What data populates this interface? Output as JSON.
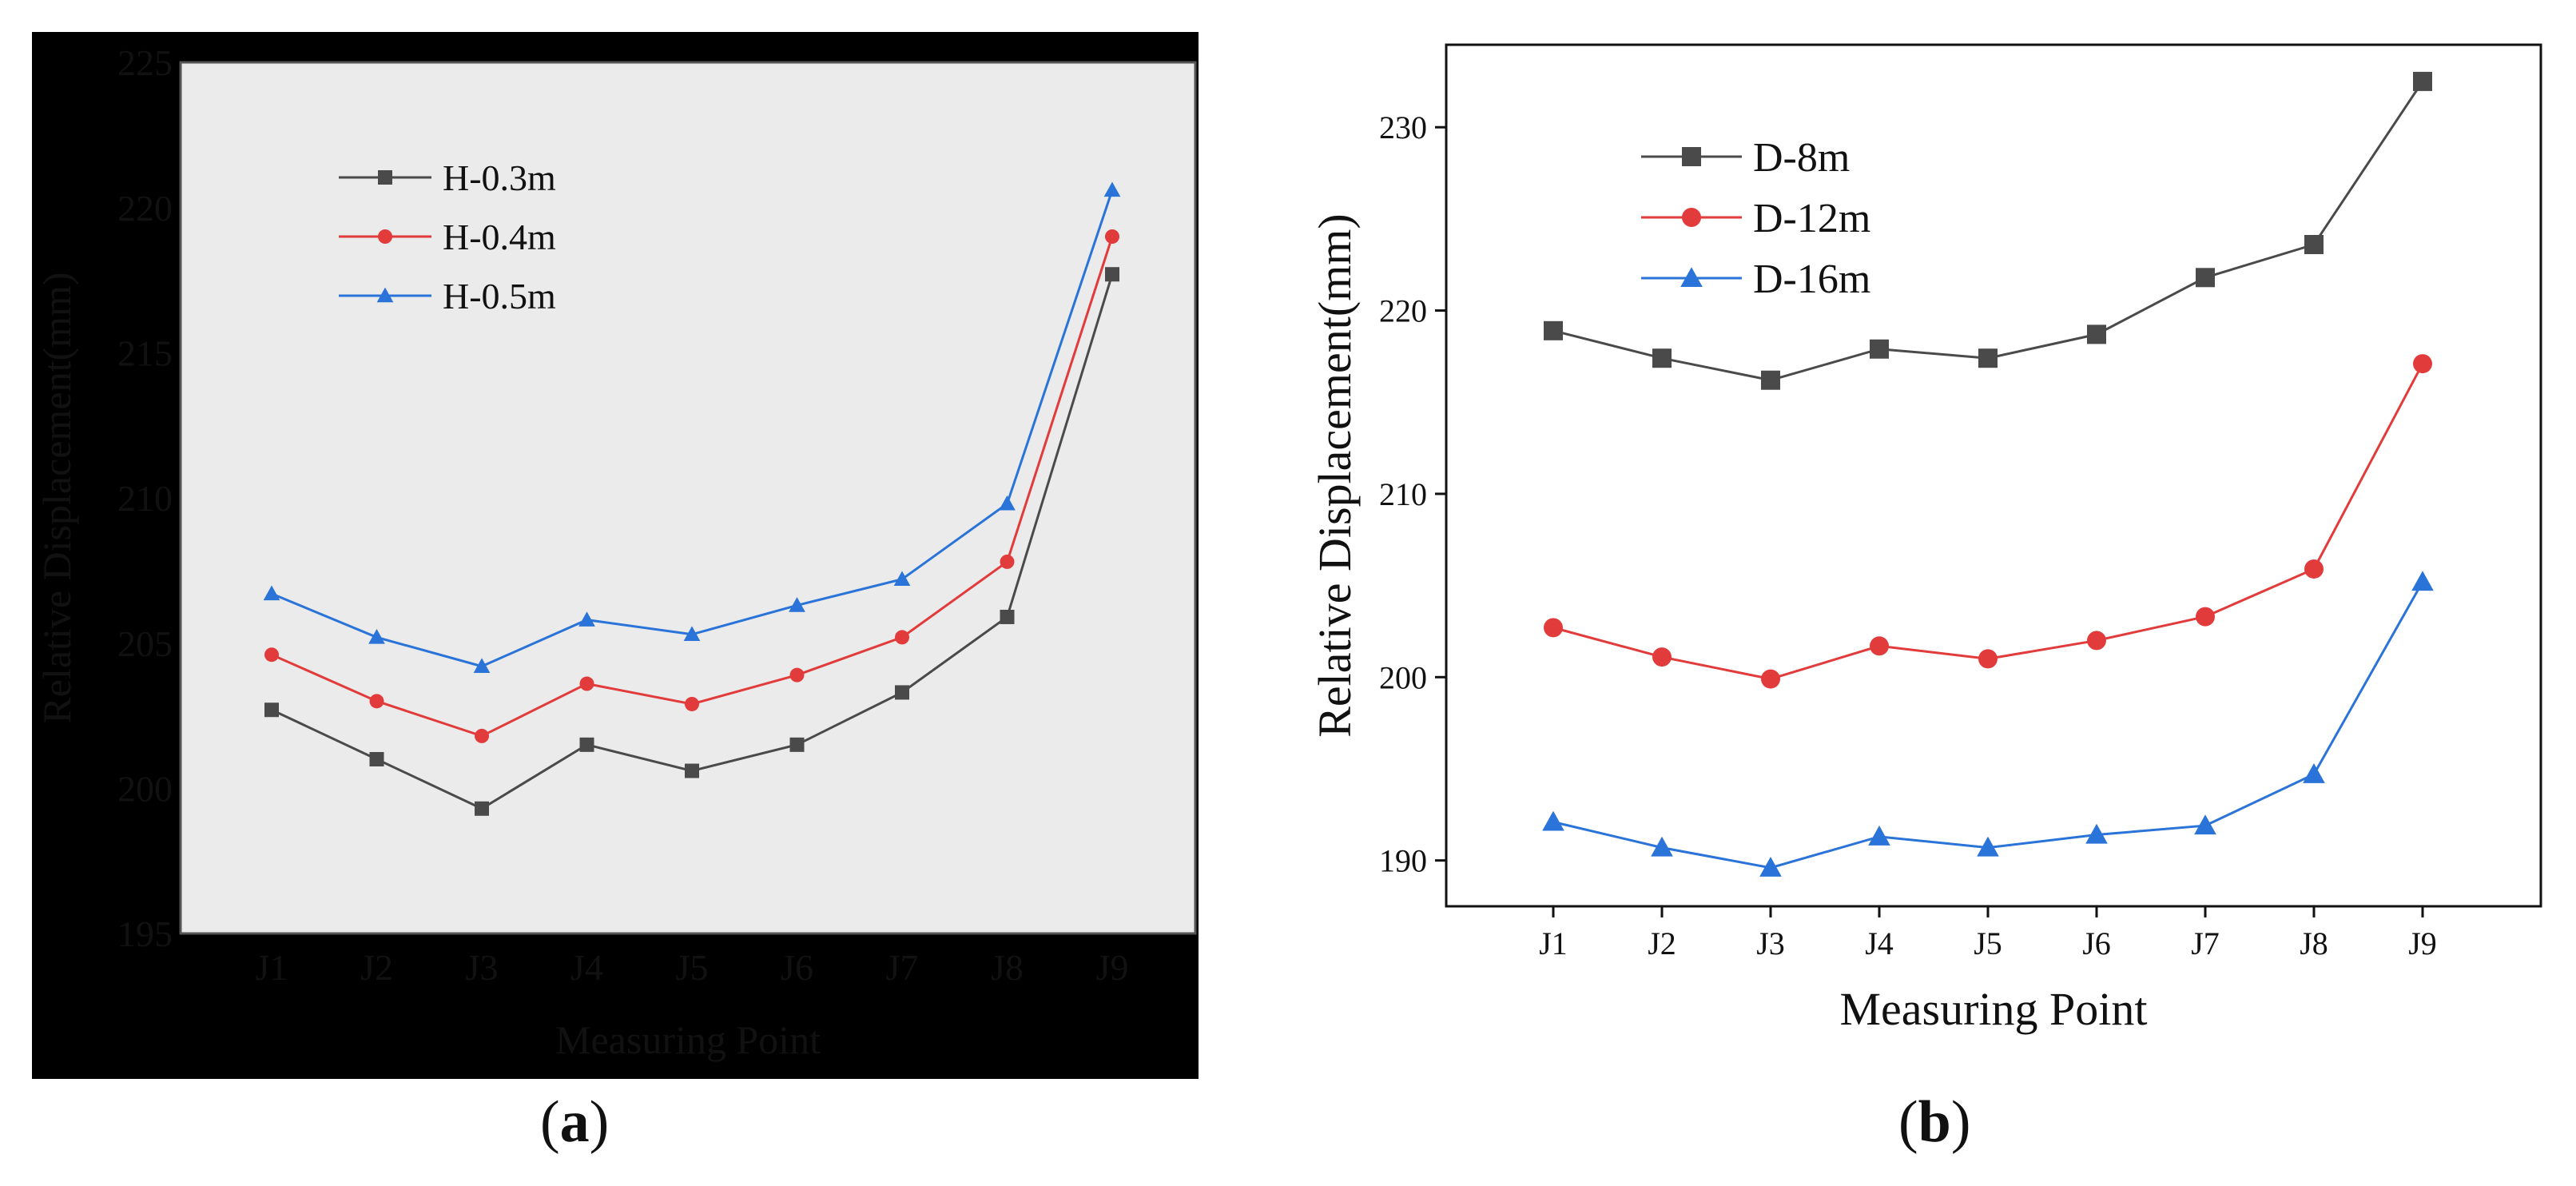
{
  "chart_data": [
    {
      "type": "line",
      "panel_label": "a",
      "categories": [
        "J1",
        "J2",
        "J3",
        "J4",
        "J5",
        "J6",
        "J7",
        "J8",
        "J9"
      ],
      "series": [
        {
          "name": "H-0.3m",
          "marker": "square",
          "color": "#4a4a4a",
          "values": [
            202.7,
            201.0,
            199.3,
            201.5,
            200.6,
            201.5,
            203.3,
            205.9,
            217.7
          ]
        },
        {
          "name": "H-0.4m",
          "marker": "circle",
          "color": "#e23b3b",
          "values": [
            204.6,
            203.0,
            201.8,
            203.6,
            202.9,
            203.9,
            205.2,
            207.8,
            219.0
          ]
        },
        {
          "name": "H-0.5m",
          "marker": "triangle",
          "color": "#2a73d8",
          "values": [
            206.7,
            205.2,
            204.2,
            205.8,
            205.3,
            206.3,
            207.2,
            209.8,
            220.6
          ]
        }
      ],
      "xlabel": "Measuring Point",
      "ylabel": "Relative Displacement(mm)",
      "ylim": [
        195,
        225
      ],
      "yticks": [
        "195",
        "200",
        "205",
        "210",
        "215",
        "220",
        "225"
      ],
      "legend_position": "top-left"
    },
    {
      "type": "line",
      "panel_label": "b",
      "categories": [
        "J1",
        "J2",
        "J3",
        "J4",
        "J5",
        "J6",
        "J7",
        "J8",
        "J9"
      ],
      "series": [
        {
          "name": "D-8m",
          "marker": "square",
          "color": "#4a4a4a",
          "values": [
            218.9,
            217.4,
            216.2,
            217.9,
            217.4,
            218.7,
            221.8,
            223.6,
            232.5
          ]
        },
        {
          "name": "D-12m",
          "marker": "circle",
          "color": "#e23b3b",
          "values": [
            202.7,
            201.1,
            199.9,
            201.7,
            201.0,
            202.0,
            203.3,
            205.9,
            217.1
          ]
        },
        {
          "name": "D-16m",
          "marker": "triangle",
          "color": "#2a73d8",
          "values": [
            192.1,
            190.7,
            189.6,
            191.3,
            190.7,
            191.4,
            191.9,
            194.7,
            205.2
          ]
        }
      ],
      "xlabel": "Measuring Point",
      "ylabel": "Relative Displacement(mm)",
      "ylim": [
        187.5,
        234.5
      ],
      "yticks": [
        "190",
        "200",
        "210",
        "220",
        "230"
      ],
      "legend_position": "top-left"
    }
  ]
}
